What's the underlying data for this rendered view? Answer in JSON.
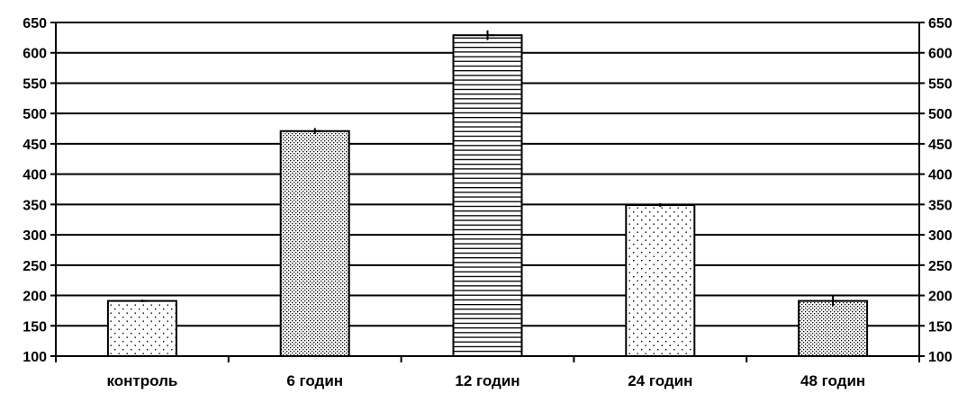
{
  "chart_data": {
    "type": "bar",
    "categories": [
      "контроль",
      "6 годин",
      "12 годин",
      "24 годин",
      "48 годин"
    ],
    "values": [
      191,
      471,
      629,
      349,
      191
    ],
    "errors": [
      2,
      5,
      8,
      3,
      8
    ],
    "patterns": [
      "sparse-dots",
      "dense-dots",
      "horizontal-lines",
      "sparse-dots",
      "dense-dots"
    ],
    "ylim": [
      100,
      650
    ],
    "yticks": [
      100,
      150,
      200,
      250,
      300,
      350,
      400,
      450,
      500,
      550,
      600,
      650
    ],
    "y_axis_both_sides": true,
    "grid": true,
    "title": "",
    "xlabel": "",
    "ylabel": "",
    "colors": {
      "bar_fill": "#ffffff",
      "stroke": "#000000",
      "pattern": "#000000"
    }
  }
}
